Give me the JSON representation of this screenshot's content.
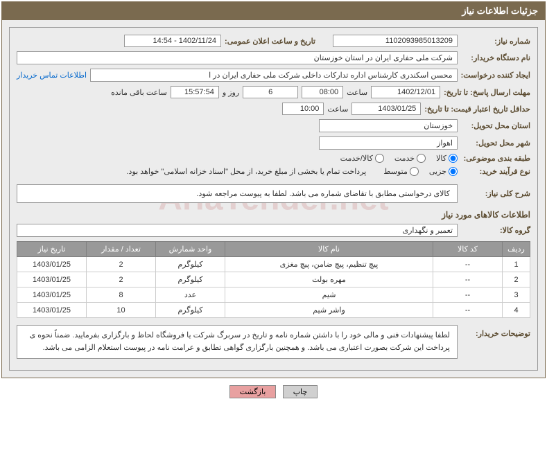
{
  "header": {
    "title": "جزئیات اطلاعات نیاز"
  },
  "fields": {
    "req_no_label": "شماره نیاز:",
    "req_no": "1102093985013209",
    "announce_label": "تاریخ و ساعت اعلان عمومی:",
    "announce": "1402/11/24 - 14:54",
    "buyer_label": "نام دستگاه خریدار:",
    "buyer": "شرکت ملی حفاری ایران در استان خوزستان",
    "requester_label": "ایجاد کننده درخواست:",
    "requester": "محسن اسکندری کارشناس اداره تدارکات داخلی  شرکت ملی حفاری ایران در ا",
    "contact_link": "اطلاعات تماس خریدار",
    "deadline_label": "مهلت ارسال پاسخ: تا تاریخ:",
    "deadline_date": "1402/12/01",
    "time_label": "ساعت",
    "deadline_time": "08:00",
    "days": "6",
    "days_label": "روز و",
    "countdown": "15:57:54",
    "remaining_label": "ساعت باقی مانده",
    "validity_label": "حداقل تاریخ اعتبار قیمت: تا تاریخ:",
    "validity_date": "1403/01/25",
    "validity_time": "10:00",
    "province_label": "استان محل تحویل:",
    "province": "خوزستان",
    "city_label": "شهر محل تحویل:",
    "city": "اهواز",
    "category_label": "طبقه بندی موضوعی:",
    "cat_goods": "کالا",
    "cat_service": "خدمت",
    "cat_both": "کالا/خدمت",
    "process_label": "نوع فرآیند خرید:",
    "proc_minor": "جزیی",
    "proc_medium": "متوسط",
    "process_note": "پرداخت تمام یا بخشی از مبلغ خرید، از محل \"اسناد خزانه اسلامی\" خواهد بود.",
    "general_desc_label": "شرح کلی نیاز:",
    "general_desc": "کالای درخواستی مطابق با تقاضای شماره   می باشد. لطفا به پیوست مراجعه شود.",
    "items_section": "اطلاعات کالاهای مورد نیاز",
    "group_label": "گروه کالا:",
    "group": "تعمیر و نگهداری",
    "buyer_note_label": "توضیحات خریدار:",
    "buyer_note": "لطفا پیشنهادات فنی و مالی خود را با داشتن شماره نامه و تاریخ در سربرگ شرکت یا فروشگاه لحاظ و بارگزاری بفرمایید. ضمناً نحوه ی پرداخت این شرکت بصورت اعتباری می باشد. و همچنین بارگزاری گواهی تطابق و عرامت نامه در پیوست استعلام الزامی می باشد."
  },
  "table": {
    "headers": [
      "ردیف",
      "کد کالا",
      "نام کالا",
      "واحد شمارش",
      "تعداد / مقدار",
      "تاریخ نیاز"
    ],
    "rows": [
      [
        "1",
        "--",
        "پیچ تنظیم، پیچ ضامن، پیچ مغزی",
        "کیلوگرم",
        "2",
        "1403/01/25"
      ],
      [
        "2",
        "--",
        "مهره بولت",
        "کیلوگرم",
        "2",
        "1403/01/25"
      ],
      [
        "3",
        "--",
        "شیم",
        "عدد",
        "8",
        "1403/01/25"
      ],
      [
        "4",
        "--",
        "واشر شیم",
        "کیلوگرم",
        "10",
        "1403/01/25"
      ]
    ]
  },
  "buttons": {
    "print": "چاپ",
    "back": "بازگشت"
  },
  "watermark": "AriaTender.net"
}
